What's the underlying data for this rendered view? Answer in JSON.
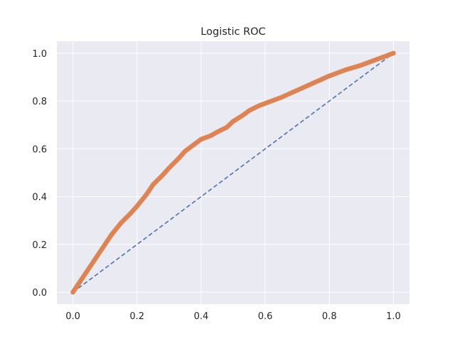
{
  "chart_data": {
    "type": "line",
    "title": "Logistic ROC",
    "xlabel": "",
    "ylabel": "",
    "xlim": [
      -0.05,
      1.05
    ],
    "ylim": [
      -0.05,
      1.05
    ],
    "x_ticks": [
      "0.0",
      "0.2",
      "0.4",
      "0.6",
      "0.8",
      "1.0"
    ],
    "y_ticks": [
      "0.0",
      "0.2",
      "0.4",
      "0.6",
      "0.8",
      "1.0"
    ],
    "x_tick_values": [
      0,
      0.2,
      0.4,
      0.6,
      0.8,
      1.0
    ],
    "y_tick_values": [
      0,
      0.2,
      0.4,
      0.6,
      0.8,
      1.0
    ],
    "grid": true,
    "legend": "none",
    "colors": {
      "axes_background": "#eaeaf2",
      "grid": "#ffffff",
      "diagonal": "#4c72b0",
      "roc": "#dd8452"
    },
    "series": [
      {
        "style": "dashed",
        "color": "#4c72b0",
        "x": [
          0,
          1
        ],
        "y": [
          0,
          1
        ]
      },
      {
        "style": "thick-markers",
        "color": "#dd8452",
        "x": [
          0,
          0.02,
          0.05,
          0.08,
          0.1,
          0.12,
          0.15,
          0.18,
          0.2,
          0.23,
          0.25,
          0.28,
          0.3,
          0.33,
          0.35,
          0.38,
          0.4,
          0.43,
          0.45,
          0.48,
          0.5,
          0.53,
          0.55,
          0.58,
          0.6,
          0.65,
          0.7,
          0.75,
          0.8,
          0.85,
          0.9,
          0.95,
          1.0
        ],
        "y": [
          0,
          0.04,
          0.1,
          0.16,
          0.2,
          0.24,
          0.29,
          0.33,
          0.36,
          0.41,
          0.45,
          0.49,
          0.52,
          0.56,
          0.59,
          0.62,
          0.64,
          0.655,
          0.67,
          0.69,
          0.715,
          0.74,
          0.76,
          0.78,
          0.79,
          0.815,
          0.845,
          0.875,
          0.905,
          0.93,
          0.95,
          0.975,
          1.0
        ]
      }
    ]
  }
}
